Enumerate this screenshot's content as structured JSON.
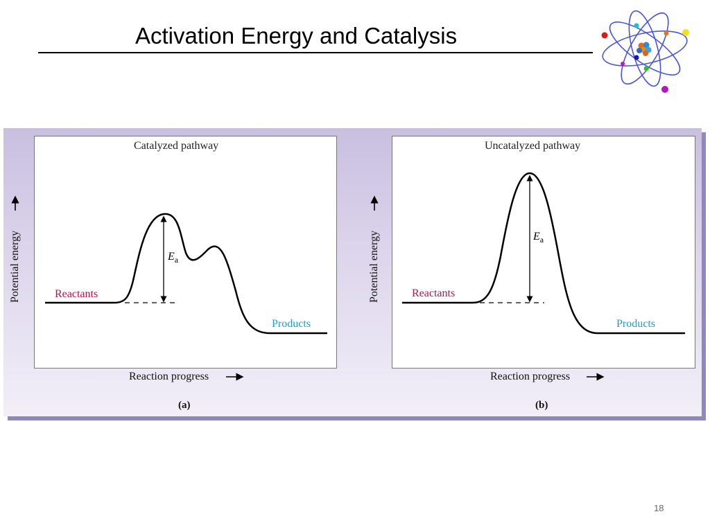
{
  "slide": {
    "title": "Activation Energy and Catalysis",
    "page_number": "18"
  },
  "figure": {
    "panels": [
      {
        "id": "a",
        "title": "Catalyzed pathway",
        "reactants_label": "Reactants",
        "products_label": "Products",
        "ea_main": "E",
        "ea_sub": "a",
        "x_axis_label": "Reaction progress",
        "y_axis_label": "Potential energy",
        "subfigure_label": "(a)"
      },
      {
        "id": "b",
        "title": "Uncatalyzed pathway",
        "reactants_label": "Reactants",
        "products_label": "Products",
        "ea_main": "E",
        "ea_sub": "a",
        "x_axis_label": "Reaction progress",
        "y_axis_label": "Potential energy",
        "subfigure_label": "(b)"
      }
    ]
  },
  "colors": {
    "reactants": "#b0144c",
    "products": "#1a9fc9",
    "figure_background": "#ddd6ec",
    "curve": "#000000"
  },
  "icons": {
    "logo": "atom-icon"
  }
}
